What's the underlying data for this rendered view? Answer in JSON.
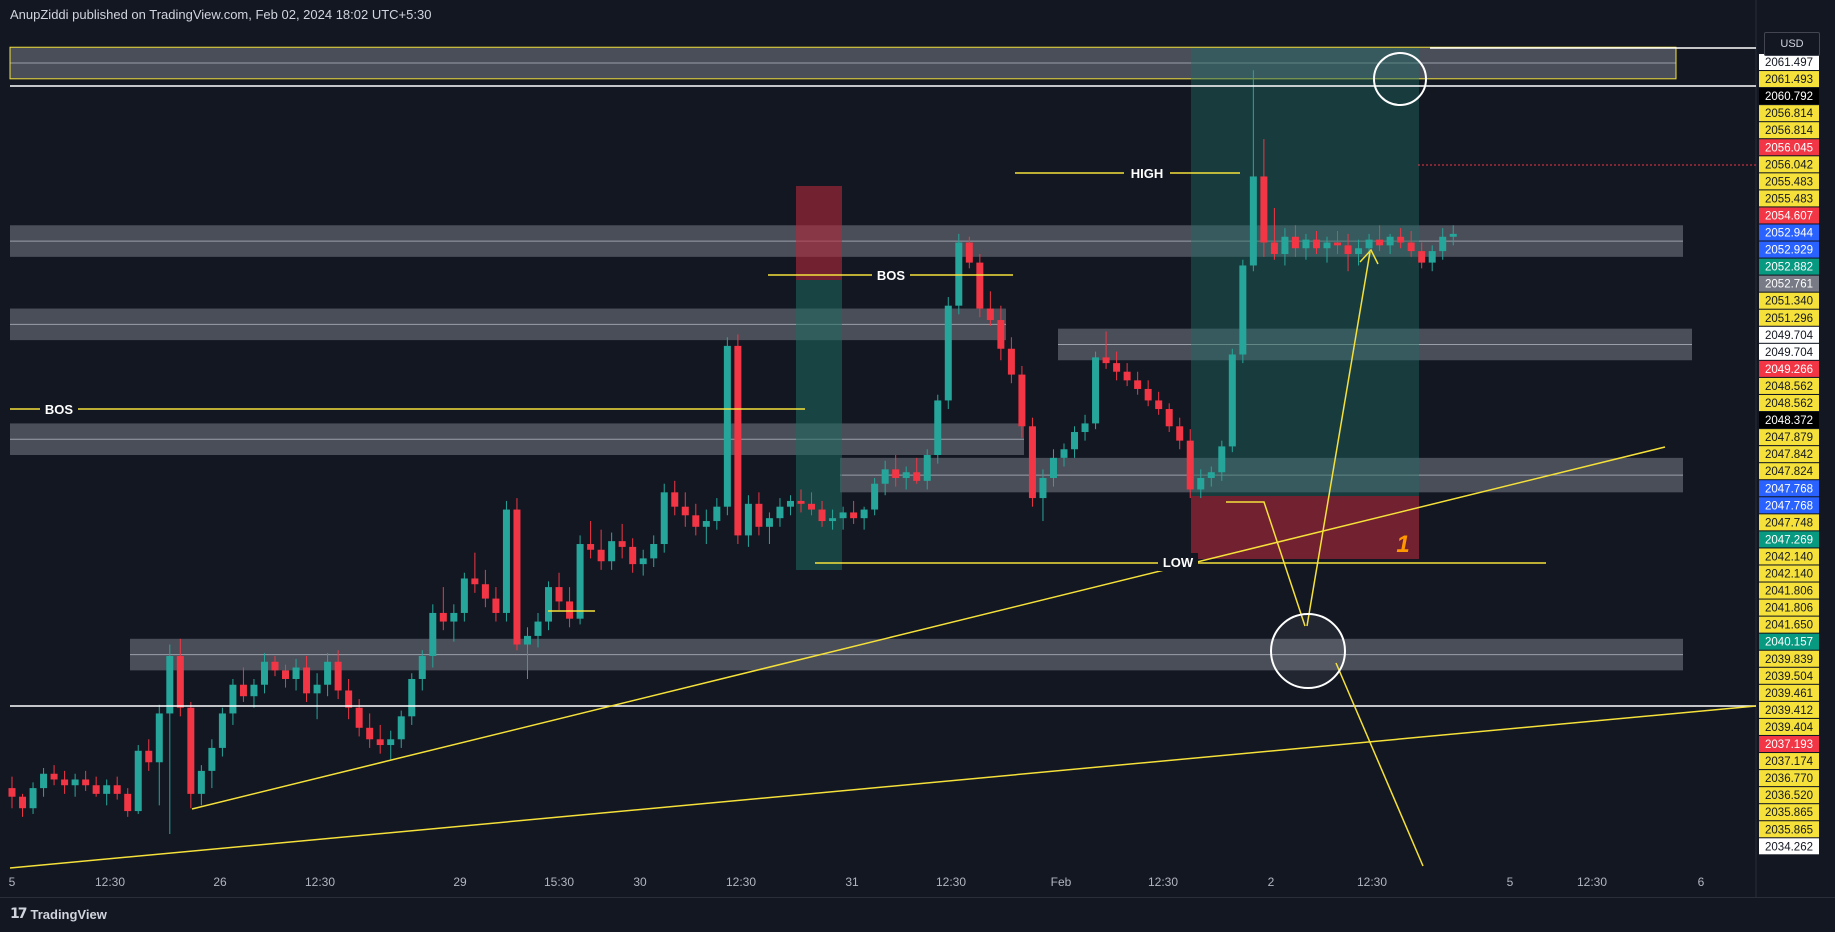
{
  "header": {
    "text": "AnupZiddi published on TradingView.com, Feb 02, 2024 18:02 UTC+5:30"
  },
  "footer": {
    "brand": "TradingView"
  },
  "currency_button": "USD",
  "colors": {
    "up": "#26a69a",
    "down": "#f23645",
    "zone": "#787b86",
    "line_yellow": "#f5e13a",
    "bg": "#131722"
  },
  "chart_data": {
    "type": "candlestick",
    "symbol_pane": "price",
    "ylim": [
      2033.6,
      2063.2
    ],
    "x_ticks": [
      "5",
      "12:30",
      "26",
      "12:30",
      "29",
      "15:30",
      "30",
      "12:30",
      "31",
      "12:30",
      "Feb",
      "12:30",
      "2",
      "12:30",
      "5",
      "12:30",
      "6"
    ],
    "price_labels": [
      {
        "text": "2061.497",
        "bg": "#ffffff",
        "fg": "#131722"
      },
      {
        "text": "2061.493",
        "bg": "#f5e13a",
        "fg": "#131722"
      },
      {
        "text": "2060.792",
        "bg": "#000000",
        "fg": "#ffffff"
      },
      {
        "text": "2056.814",
        "bg": "#f5e13a",
        "fg": "#131722"
      },
      {
        "text": "2056.814",
        "bg": "#f5e13a",
        "fg": "#131722"
      },
      {
        "text": "2056.045",
        "bg": "#f23645",
        "fg": "#ffffff"
      },
      {
        "text": "2056.042",
        "bg": "#f5e13a",
        "fg": "#131722"
      },
      {
        "text": "2055.483",
        "bg": "#f5e13a",
        "fg": "#131722"
      },
      {
        "text": "2055.483",
        "bg": "#f5e13a",
        "fg": "#131722"
      },
      {
        "text": "2054.607",
        "bg": "#f23645",
        "fg": "#ffffff"
      },
      {
        "text": "2052.944",
        "bg": "#2962ff",
        "fg": "#ffffff"
      },
      {
        "text": "2052.929",
        "bg": "#2962ff",
        "fg": "#ffffff"
      },
      {
        "text": "2052.882",
        "bg": "#089981",
        "fg": "#ffffff"
      },
      {
        "text": "2052.761",
        "bg": "#787b86",
        "fg": "#ffffff"
      },
      {
        "text": "2051.340",
        "bg": "#f5e13a",
        "fg": "#131722"
      },
      {
        "text": "2051.296",
        "bg": "#f5e13a",
        "fg": "#131722"
      },
      {
        "text": "2049.704",
        "bg": "#ffffff",
        "fg": "#131722"
      },
      {
        "text": "2049.704",
        "bg": "#ffffff",
        "fg": "#131722"
      },
      {
        "text": "2049.266",
        "bg": "#f23645",
        "fg": "#ffffff"
      },
      {
        "text": "2048.562",
        "bg": "#f5e13a",
        "fg": "#131722"
      },
      {
        "text": "2048.562",
        "bg": "#f5e13a",
        "fg": "#131722"
      },
      {
        "text": "2048.372",
        "bg": "#000000",
        "fg": "#ffffff"
      },
      {
        "text": "2047.879",
        "bg": "#f5e13a",
        "fg": "#131722"
      },
      {
        "text": "2047.842",
        "bg": "#f5e13a",
        "fg": "#131722"
      },
      {
        "text": "2047.824",
        "bg": "#f5e13a",
        "fg": "#131722"
      },
      {
        "text": "2047.768",
        "bg": "#2962ff",
        "fg": "#ffffff"
      },
      {
        "text": "2047.768",
        "bg": "#2962ff",
        "fg": "#ffffff"
      },
      {
        "text": "2047.748",
        "bg": "#f5e13a",
        "fg": "#131722"
      },
      {
        "text": "2047.269",
        "bg": "#089981",
        "fg": "#ffffff"
      },
      {
        "text": "2042.140",
        "bg": "#f5e13a",
        "fg": "#131722"
      },
      {
        "text": "2042.140",
        "bg": "#f5e13a",
        "fg": "#131722"
      },
      {
        "text": "2041.806",
        "bg": "#f5e13a",
        "fg": "#131722"
      },
      {
        "text": "2041.806",
        "bg": "#f5e13a",
        "fg": "#131722"
      },
      {
        "text": "2041.650",
        "bg": "#f5e13a",
        "fg": "#131722"
      },
      {
        "text": "2040.157",
        "bg": "#089981",
        "fg": "#ffffff"
      },
      {
        "text": "2039.839",
        "bg": "#f5e13a",
        "fg": "#131722"
      },
      {
        "text": "2039.504",
        "bg": "#f5e13a",
        "fg": "#131722"
      },
      {
        "text": "2039.461",
        "bg": "#f5e13a",
        "fg": "#131722"
      },
      {
        "text": "2039.412",
        "bg": "#f5e13a",
        "fg": "#131722"
      },
      {
        "text": "2039.404",
        "bg": "#f5e13a",
        "fg": "#131722"
      },
      {
        "text": "2037.193",
        "bg": "#f23645",
        "fg": "#ffffff"
      },
      {
        "text": "2037.174",
        "bg": "#f5e13a",
        "fg": "#131722"
      },
      {
        "text": "2036.770",
        "bg": "#f5e13a",
        "fg": "#131722"
      },
      {
        "text": "2036.520",
        "bg": "#f5e13a",
        "fg": "#131722"
      },
      {
        "text": "2035.865",
        "bg": "#f5e13a",
        "fg": "#131722"
      },
      {
        "text": "2035.865",
        "bg": "#f5e13a",
        "fg": "#131722"
      },
      {
        "text": "2034.262",
        "bg": "#ffffff",
        "fg": "#131722"
      }
    ],
    "annotations": [
      {
        "text": "BOS"
      },
      {
        "text": "BOS"
      },
      {
        "text": "HIGH"
      },
      {
        "text": "LOW"
      },
      {
        "text": "1"
      }
    ],
    "horizontal_lines": [
      2060.792,
      2039.461
    ],
    "zones": [
      {
        "from": 2061.5,
        "to": 2062.6
      },
      {
        "from": 2055.3,
        "to": 2056.4
      },
      {
        "from": 2052.4,
        "to": 2053.5
      },
      {
        "from": 2051.7,
        "to": 2052.8
      },
      {
        "from": 2048.4,
        "to": 2049.5
      },
      {
        "from": 2047.1,
        "to": 2048.3
      },
      {
        "from": 2040.9,
        "to": 2042.0
      }
    ],
    "candles": [
      [
        2036.8,
        2037.2,
        2036.1,
        2036.5
      ],
      [
        2036.5,
        2036.6,
        2035.8,
        2036.1
      ],
      [
        2036.1,
        2037.0,
        2035.9,
        2036.8
      ],
      [
        2036.8,
        2037.5,
        2036.5,
        2037.3
      ],
      [
        2037.3,
        2037.6,
        2036.9,
        2037.1
      ],
      [
        2037.1,
        2037.4,
        2036.6,
        2036.9
      ],
      [
        2036.9,
        2037.3,
        2036.5,
        2037.1
      ],
      [
        2037.1,
        2037.4,
        2036.7,
        2036.9
      ],
      [
        2036.9,
        2037.2,
        2036.5,
        2036.6
      ],
      [
        2036.6,
        2037.1,
        2036.2,
        2036.9
      ],
      [
        2036.9,
        2037.2,
        2036.4,
        2036.6
      ],
      [
        2036.6,
        2036.8,
        2035.8,
        2036.0
      ],
      [
        2036.0,
        2038.3,
        2035.9,
        2038.1
      ],
      [
        2038.1,
        2038.5,
        2037.4,
        2037.7
      ],
      [
        2037.7,
        2039.7,
        2036.2,
        2039.4
      ],
      [
        2039.4,
        2041.8,
        2035.2,
        2041.4
      ],
      [
        2041.4,
        2042.0,
        2039.3,
        2039.6
      ],
      [
        2039.6,
        2039.8,
        2036.1,
        2036.6
      ],
      [
        2036.6,
        2037.6,
        2036.2,
        2037.4
      ],
      [
        2037.4,
        2038.5,
        2036.8,
        2038.2
      ],
      [
        2038.2,
        2039.6,
        2037.9,
        2039.4
      ],
      [
        2039.4,
        2040.6,
        2039.0,
        2040.4
      ],
      [
        2040.4,
        2041.0,
        2039.8,
        2040.0
      ],
      [
        2040.0,
        2040.6,
        2039.6,
        2040.4
      ],
      [
        2040.4,
        2041.5,
        2040.1,
        2041.2
      ],
      [
        2041.2,
        2041.4,
        2040.7,
        2040.9
      ],
      [
        2040.9,
        2041.1,
        2040.3,
        2040.6
      ],
      [
        2040.6,
        2041.3,
        2040.2,
        2041.0
      ],
      [
        2041.0,
        2041.4,
        2039.8,
        2040.1
      ],
      [
        2040.1,
        2040.8,
        2039.2,
        2040.4
      ],
      [
        2040.4,
        2041.5,
        2040.0,
        2041.2
      ],
      [
        2041.2,
        2041.6,
        2039.9,
        2040.2
      ],
      [
        2040.2,
        2040.6,
        2039.2,
        2039.6
      ],
      [
        2039.6,
        2039.9,
        2038.6,
        2038.9
      ],
      [
        2038.9,
        2039.4,
        2038.2,
        2038.5
      ],
      [
        2038.5,
        2039.0,
        2038.0,
        2038.3
      ],
      [
        2038.3,
        2038.8,
        2037.8,
        2038.5
      ],
      [
        2038.5,
        2039.5,
        2038.2,
        2039.3
      ],
      [
        2039.3,
        2040.8,
        2039.0,
        2040.6
      ],
      [
        2040.6,
        2041.6,
        2040.2,
        2041.4
      ],
      [
        2041.4,
        2043.2,
        2041.0,
        2042.9
      ],
      [
        2042.9,
        2043.8,
        2042.3,
        2042.6
      ],
      [
        2042.6,
        2043.2,
        2041.9,
        2042.9
      ],
      [
        2042.9,
        2044.3,
        2042.6,
        2044.1
      ],
      [
        2044.1,
        2045.0,
        2043.6,
        2043.9
      ],
      [
        2043.9,
        2044.4,
        2043.1,
        2043.4
      ],
      [
        2043.4,
        2043.8,
        2042.6,
        2042.9
      ],
      [
        2042.9,
        2046.8,
        2042.6,
        2046.5
      ],
      [
        2046.5,
        2046.9,
        2041.6,
        2041.8
      ],
      [
        2041.8,
        2042.4,
        2040.6,
        2042.1
      ],
      [
        2042.1,
        2042.9,
        2041.7,
        2042.6
      ],
      [
        2042.6,
        2044.0,
        2042.3,
        2043.8
      ],
      [
        2043.8,
        2044.3,
        2043.0,
        2043.3
      ],
      [
        2043.3,
        2043.8,
        2042.4,
        2042.7
      ],
      [
        2042.7,
        2045.6,
        2042.5,
        2045.3
      ],
      [
        2045.3,
        2046.1,
        2044.8,
        2045.1
      ],
      [
        2045.1,
        2045.8,
        2044.4,
        2044.7
      ],
      [
        2044.7,
        2045.7,
        2044.4,
        2045.4
      ],
      [
        2045.4,
        2046.0,
        2044.8,
        2045.2
      ],
      [
        2045.2,
        2045.5,
        2044.3,
        2044.6
      ],
      [
        2044.6,
        2045.1,
        2044.2,
        2044.8
      ],
      [
        2044.8,
        2045.6,
        2044.5,
        2045.3
      ],
      [
        2045.3,
        2047.4,
        2045.0,
        2047.1
      ],
      [
        2047.1,
        2047.5,
        2046.3,
        2046.6
      ],
      [
        2046.6,
        2047.1,
        2045.9,
        2046.3
      ],
      [
        2046.3,
        2046.7,
        2045.6,
        2045.9
      ],
      [
        2045.9,
        2046.5,
        2045.3,
        2046.1
      ],
      [
        2046.1,
        2046.9,
        2045.8,
        2046.6
      ],
      [
        2046.6,
        2052.5,
        2046.3,
        2052.2
      ],
      [
        2052.2,
        2052.6,
        2045.3,
        2045.6
      ],
      [
        2045.6,
        2047.0,
        2045.2,
        2046.7
      ],
      [
        2046.7,
        2047.1,
        2045.6,
        2045.9
      ],
      [
        2045.9,
        2046.4,
        2045.3,
        2046.2
      ],
      [
        2046.2,
        2046.9,
        2045.9,
        2046.6
      ],
      [
        2046.6,
        2047.0,
        2046.3,
        2046.8
      ],
      [
        2046.8,
        2047.2,
        2046.4,
        2046.7
      ],
      [
        2046.7,
        2047.1,
        2046.3,
        2046.5
      ],
      [
        2046.5,
        2046.8,
        2045.9,
        2046.1
      ],
      [
        2046.1,
        2046.5,
        2045.8,
        2046.2
      ],
      [
        2046.2,
        2046.6,
        2045.8,
        2046.4
      ],
      [
        2046.4,
        2046.8,
        2046.0,
        2046.2
      ],
      [
        2046.2,
        2046.6,
        2045.8,
        2046.5
      ],
      [
        2046.5,
        2047.6,
        2046.3,
        2047.4
      ],
      [
        2047.4,
        2048.2,
        2047.0,
        2047.9
      ],
      [
        2047.9,
        2048.4,
        2047.3,
        2047.6
      ],
      [
        2047.6,
        2048.0,
        2047.2,
        2047.8
      ],
      [
        2047.8,
        2048.3,
        2047.4,
        2047.5
      ],
      [
        2047.5,
        2048.6,
        2047.2,
        2048.4
      ],
      [
        2048.4,
        2050.5,
        2048.1,
        2050.3
      ],
      [
        2050.3,
        2053.9,
        2050.0,
        2053.6
      ],
      [
        2053.6,
        2056.1,
        2053.3,
        2055.8
      ],
      [
        2055.8,
        2056.0,
        2054.9,
        2055.1
      ],
      [
        2055.1,
        2055.4,
        2053.2,
        2053.5
      ],
      [
        2053.5,
        2054.1,
        2052.9,
        2053.1
      ],
      [
        2053.1,
        2053.6,
        2051.7,
        2052.1
      ],
      [
        2052.1,
        2052.5,
        2050.9,
        2051.2
      ],
      [
        2051.2,
        2051.5,
        2049.0,
        2049.4
      ],
      [
        2049.4,
        2049.7,
        2046.6,
        2046.9
      ],
      [
        2046.9,
        2047.9,
        2046.1,
        2047.6
      ],
      [
        2047.6,
        2048.6,
        2047.3,
        2048.3
      ],
      [
        2048.3,
        2048.8,
        2048.0,
        2048.6
      ],
      [
        2048.6,
        2049.4,
        2048.3,
        2049.2
      ],
      [
        2049.2,
        2049.8,
        2048.9,
        2049.5
      ],
      [
        2049.5,
        2052.0,
        2049.3,
        2051.8
      ],
      [
        2051.8,
        2052.7,
        2051.4,
        2051.6
      ],
      [
        2051.6,
        2052.0,
        2051.0,
        2051.3
      ],
      [
        2051.3,
        2051.6,
        2050.8,
        2051.0
      ],
      [
        2051.0,
        2051.3,
        2050.5,
        2050.7
      ],
      [
        2050.7,
        2051.0,
        2050.1,
        2050.3
      ],
      [
        2050.3,
        2050.6,
        2049.8,
        2050.0
      ],
      [
        2050.0,
        2050.2,
        2049.2,
        2049.4
      ],
      [
        2049.4,
        2049.7,
        2048.6,
        2048.9
      ],
      [
        2048.9,
        2049.3,
        2046.9,
        2047.2
      ],
      [
        2047.2,
        2047.9,
        2046.9,
        2047.6
      ],
      [
        2047.6,
        2048.0,
        2047.3,
        2047.8
      ],
      [
        2047.8,
        2048.9,
        2047.5,
        2048.7
      ],
      [
        2048.7,
        2052.1,
        2048.5,
        2051.9
      ],
      [
        2051.9,
        2055.2,
        2051.6,
        2055.0
      ],
      [
        2055.0,
        2061.8,
        2054.8,
        2058.1
      ],
      [
        2058.1,
        2059.4,
        2055.3,
        2055.8
      ],
      [
        2055.8,
        2057.0,
        2055.2,
        2055.4
      ],
      [
        2055.4,
        2056.3,
        2055.0,
        2056.0
      ],
      [
        2056.0,
        2056.4,
        2055.3,
        2055.6
      ],
      [
        2055.6,
        2056.1,
        2055.2,
        2055.9
      ],
      [
        2055.9,
        2056.2,
        2055.4,
        2055.6
      ],
      [
        2055.6,
        2056.0,
        2055.1,
        2055.8
      ],
      [
        2055.8,
        2056.2,
        2055.4,
        2055.7
      ],
      [
        2055.7,
        2056.1,
        2054.8,
        2055.4
      ],
      [
        2055.4,
        2055.9,
        2055.0,
        2055.6
      ],
      [
        2055.6,
        2056.1,
        2055.3,
        2055.9
      ],
      [
        2055.9,
        2056.4,
        2055.5,
        2055.7
      ],
      [
        2055.7,
        2056.1,
        2055.4,
        2056.0
      ],
      [
        2056.0,
        2056.3,
        2055.6,
        2055.8
      ],
      [
        2055.8,
        2056.2,
        2055.3,
        2055.5
      ],
      [
        2055.5,
        2055.8,
        2054.9,
        2055.1
      ],
      [
        2055.1,
        2055.7,
        2054.8,
        2055.5
      ],
      [
        2055.5,
        2056.3,
        2055.2,
        2056.0
      ],
      [
        2056.0,
        2056.4,
        2055.7,
        2056.1
      ]
    ]
  }
}
